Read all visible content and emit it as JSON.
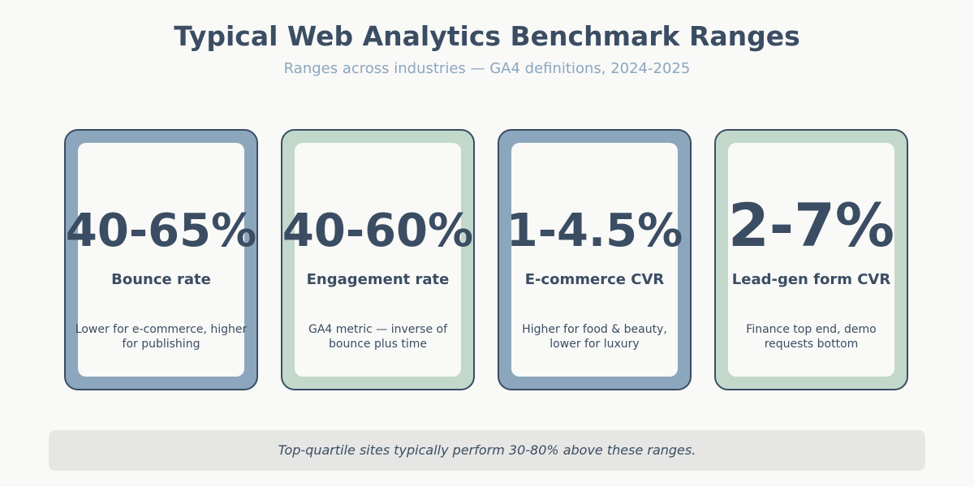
{
  "header": {
    "title": "Typical Web Analytics Benchmark Ranges",
    "subtitle": "Ranges across industries — GA4 definitions, 2024-2025"
  },
  "colors": {
    "blue": "#8ca7bd",
    "green": "#c2d8cb",
    "text": "#3b4d63",
    "border": "#3a4d63"
  },
  "cards": [
    {
      "value": "40-65%",
      "label": "Bounce rate",
      "desc": [
        "Lower for e-commerce, higher",
        "for publishing"
      ],
      "color": "#8ca7bd"
    },
    {
      "value": "40-60%",
      "label": "Engagement rate",
      "desc": [
        "GA4 metric — inverse of",
        "bounce plus time"
      ],
      "color": "#c2d8cb"
    },
    {
      "value": "1-4.5%",
      "label": "E-commerce CVR",
      "desc": [
        "Higher for food & beauty,",
        "lower for luxury"
      ],
      "color": "#8ca7bd"
    },
    {
      "value": "2-7%",
      "label": "Lead-gen form CVR",
      "desc": [
        "Finance top end, demo",
        "requests bottom"
      ],
      "color": "#c2d8cb"
    }
  ],
  "footer": {
    "note": "Top-quartile sites typically perform 30-80% above these ranges."
  }
}
